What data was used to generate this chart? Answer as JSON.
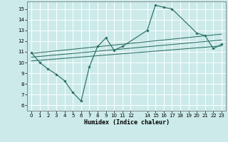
{
  "xlabel": "Humidex (Indice chaleur)",
  "bg_color": "#cceaea",
  "grid_color": "#ffffff",
  "line_color": "#2a6e62",
  "xlim": [
    -0.5,
    23.5
  ],
  "ylim": [
    5.5,
    15.7
  ],
  "xticks": [
    0,
    1,
    2,
    3,
    4,
    5,
    6,
    7,
    8,
    9,
    10,
    11,
    12,
    14,
    15,
    16,
    17,
    18,
    19,
    20,
    21,
    22,
    23
  ],
  "yticks": [
    6,
    7,
    8,
    9,
    10,
    11,
    12,
    13,
    14,
    15
  ],
  "line1_x": [
    0,
    1,
    2,
    3,
    4,
    5,
    6,
    7,
    8,
    9,
    10,
    11,
    14,
    15,
    16,
    17,
    20,
    21,
    22,
    23
  ],
  "line1_y": [
    10.9,
    10.0,
    9.4,
    8.9,
    8.3,
    7.2,
    6.4,
    9.6,
    11.5,
    12.3,
    11.15,
    11.5,
    13.0,
    15.35,
    15.15,
    15.0,
    12.75,
    12.5,
    11.3,
    11.7
  ],
  "line2_x": [
    0,
    23
  ],
  "line2_y": [
    10.15,
    11.55
  ],
  "line3_x": [
    0,
    23
  ],
  "line3_y": [
    10.5,
    12.1
  ],
  "line4_x": [
    0,
    23
  ],
  "line4_y": [
    10.85,
    12.65
  ]
}
